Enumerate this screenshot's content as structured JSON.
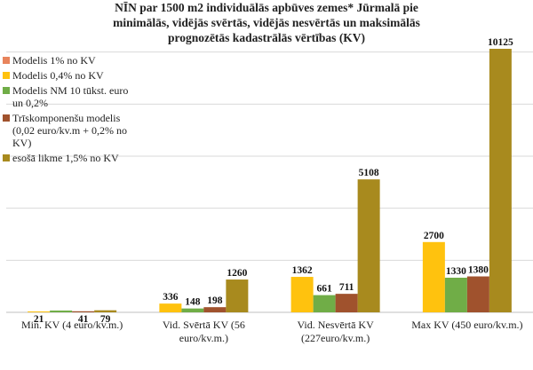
{
  "chart_data": {
    "type": "bar",
    "title_lines": [
      "NĪN par 1500 m2  individuālās apbūves zemes* Jūrmalā pie",
      "minimālās, vidējās svērtās, vidējās nesvērtās un maksimālās",
      "prognozētās kadastrālās vērtības (KV)"
    ],
    "categories": [
      [
        "Min. KV (4 euro/kv.m.)"
      ],
      [
        "Vid. Svērtā KV (56",
        "euro/kv.m.)"
      ],
      [
        "Vid. Nesvērtā KV",
        "(227euro/kv.m.)"
      ],
      [
        "Max KV (450 euro/kv.m.)"
      ]
    ],
    "series": [
      {
        "name_lines": [
          "Modelis 1% no KV"
        ],
        "color": "#E8845C",
        "values": [
          null,
          null,
          null,
          null
        ]
      },
      {
        "name_lines": [
          "Modelis 0,4% no KV"
        ],
        "color": "#FFC20E",
        "values": [
          21,
          336,
          1362,
          2700
        ],
        "labels": [
          "21",
          "336",
          "1362",
          "2700"
        ]
      },
      {
        "name_lines": [
          "Modelis NM 10 tūkst. euro",
          "un 0,2%"
        ],
        "color": "#70AD47",
        "values": [
          0,
          148,
          661,
          1330
        ],
        "labels": [
          "",
          "148",
          "661",
          "1330"
        ]
      },
      {
        "name_lines": [
          "Trīskomponenšu modelis",
          "(0,02 euro/kv.m + 0,2% no",
          "KV)"
        ],
        "color": "#A0522D",
        "values": [
          41,
          198,
          711,
          1380
        ],
        "labels": [
          "41",
          "198",
          "711",
          "1380"
        ]
      },
      {
        "name_lines": [
          "esošā likme 1,5% no KV"
        ],
        "color": "#A88A1E",
        "values": [
          79,
          1260,
          5108,
          10125
        ],
        "labels": [
          "79",
          "1260",
          "5108",
          "10125"
        ]
      }
    ],
    "ylim": [
      0,
      10500
    ],
    "gridlines": true,
    "legend_position": "left"
  }
}
